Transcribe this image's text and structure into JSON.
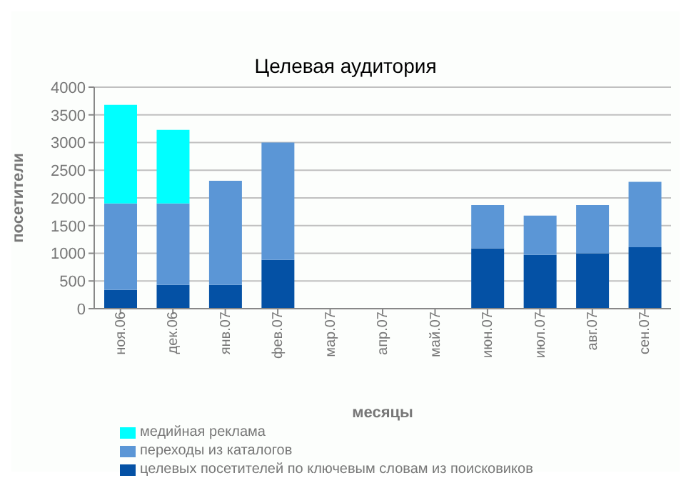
{
  "chart_data": {
    "type": "bar",
    "title": "Целевая аудитория",
    "xlabel": "месяцы",
    "ylabel": "посетители",
    "categories": [
      "ноя.06",
      "дек.06",
      "янв.07",
      "фев.07",
      "мар.07",
      "апр.07",
      "май.07",
      "июн.07",
      "июл.07",
      "авг.07",
      "сен.07"
    ],
    "stacked": true,
    "series": [
      {
        "name": "целевых посетителей по ключевым словам из поисковиков",
        "color": "#0451a5",
        "values": [
          340,
          430,
          430,
          880,
          null,
          null,
          null,
          1090,
          970,
          1000,
          1110
        ]
      },
      {
        "name": "переходы из каталогов",
        "color": "#5b96d6",
        "values": [
          1560,
          1470,
          1880,
          2120,
          null,
          null,
          null,
          780,
          710,
          870,
          1180
        ]
      },
      {
        "name": "медийная реклама",
        "color": "#00ffff",
        "values": [
          1780,
          1330,
          null,
          null,
          null,
          null,
          null,
          null,
          null,
          null,
          null
        ]
      }
    ],
    "ylim": [
      0,
      4000
    ],
    "yticks": [
      0,
      500,
      1000,
      1500,
      2000,
      2500,
      3000,
      3500,
      4000
    ],
    "grid": "y",
    "legend": "bottom"
  }
}
